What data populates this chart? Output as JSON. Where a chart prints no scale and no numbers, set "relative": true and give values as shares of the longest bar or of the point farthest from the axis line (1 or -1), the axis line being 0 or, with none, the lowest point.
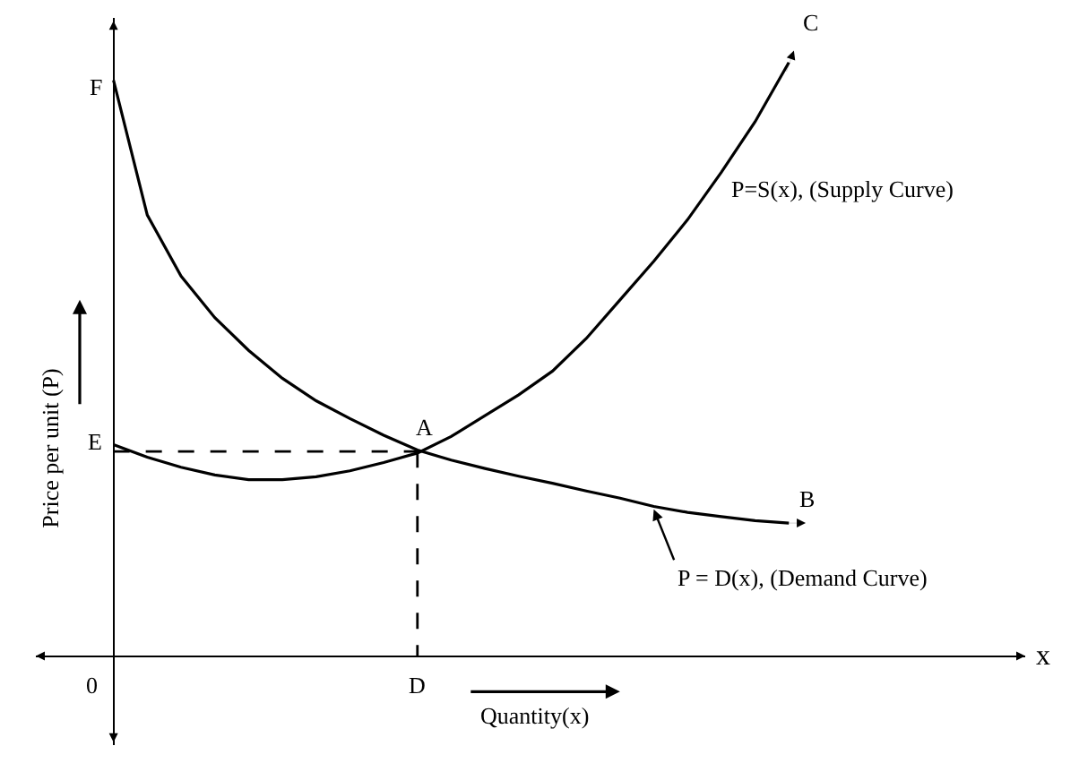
{
  "chart_data": {
    "type": "line",
    "relative": true,
    "xlabel": "Quantity(x)",
    "ylabel": "Price per unit (P)",
    "categories": [
      null,
      null,
      null,
      null,
      null,
      null,
      null,
      null,
      null,
      null,
      null,
      null,
      null,
      null,
      null,
      null,
      null,
      null,
      null,
      null,
      null
    ],
    "series": [
      {
        "color": "#000000",
        "values": [
          0.356,
          0.335,
          0.318,
          0.305,
          0.297,
          0.297,
          0.302,
          0.312,
          0.326,
          0.342,
          0.37,
          0.405,
          0.44,
          0.48,
          0.535,
          0.6,
          0.665,
          0.735,
          0.815,
          0.9,
          1.0
        ]
      },
      {
        "color": "#000000",
        "values": [
          0.97,
          0.743,
          0.64,
          0.57,
          0.515,
          0.468,
          0.43,
          0.4,
          0.372,
          0.347,
          0.33,
          0.316,
          0.303,
          0.291,
          0.278,
          0.266,
          0.252,
          0.242,
          0.235,
          0.228,
          0.224
        ]
      }
    ],
    "annotations": [
      "F",
      "E",
      "A",
      "B",
      "C",
      "D",
      "0",
      "P=S(x), (Supply Curve)",
      "P = D(x), (Demand Curve)",
      "x"
    ],
    "marker": "none",
    "line_style": "solid"
  }
}
